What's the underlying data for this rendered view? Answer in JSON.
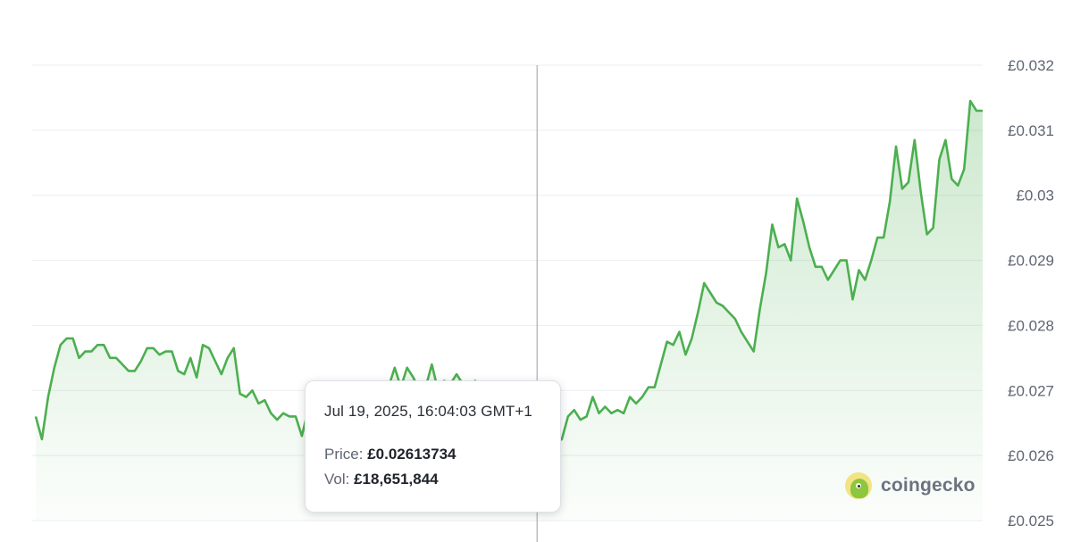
{
  "chart_data": {
    "type": "area",
    "title": "",
    "xlabel": "",
    "ylabel": "",
    "ylim": [
      0.025,
      0.032
    ],
    "y_ticks": [
      "£0.025",
      "£0.026",
      "£0.027",
      "£0.028",
      "£0.029",
      "£0.03",
      "£0.031",
      "£0.032"
    ],
    "y_tick_values": [
      0.025,
      0.026,
      0.027,
      0.028,
      0.029,
      0.03,
      0.031,
      0.032
    ],
    "grid": true,
    "y_axis_side": "right",
    "line_color": "#4caf50",
    "fill_color": "#4caf50",
    "series": [
      {
        "values": [
          0.0266,
          0.02625,
          0.0269,
          0.02735,
          0.0277,
          0.0278,
          0.0278,
          0.0275,
          0.0276,
          0.0276,
          0.0277,
          0.0277,
          0.0275,
          0.0275,
          0.0274,
          0.0273,
          0.0273,
          0.02745,
          0.02765,
          0.02765,
          0.02755,
          0.0276,
          0.0276,
          0.0273,
          0.02725,
          0.0275,
          0.0272,
          0.0277,
          0.02765,
          0.02745,
          0.02725,
          0.0275,
          0.02765,
          0.02695,
          0.0269,
          0.027,
          0.0268,
          0.02685,
          0.02665,
          0.02655,
          0.02665,
          0.0266,
          0.0266,
          0.0263,
          0.0267,
          0.0265,
          0.02675,
          0.02665,
          0.0265,
          0.0266,
          0.02665,
          0.0267,
          0.0269,
          0.02675,
          0.027,
          0.0269,
          0.027,
          0.02705,
          0.02735,
          0.02705,
          0.02735,
          0.0272,
          0.027,
          0.02705,
          0.0274,
          0.027,
          0.02715,
          0.0271,
          0.02725,
          0.0271,
          0.027,
          0.02715,
          0.02705,
          0.027,
          0.0269,
          0.0267,
          0.0266,
          0.02665,
          0.0265,
          0.0266,
          0.02635,
          0.02614,
          0.02625,
          0.02625,
          0.0262,
          0.02625,
          0.0266,
          0.0267,
          0.02655,
          0.0266,
          0.0269,
          0.02665,
          0.02675,
          0.02665,
          0.0267,
          0.02665,
          0.0269,
          0.0268,
          0.0269,
          0.02705,
          0.02705,
          0.0274,
          0.02775,
          0.0277,
          0.0279,
          0.02755,
          0.0278,
          0.0282,
          0.02865,
          0.0285,
          0.02835,
          0.0283,
          0.0282,
          0.0281,
          0.0279,
          0.02775,
          0.0276,
          0.02825,
          0.0288,
          0.02955,
          0.0292,
          0.02925,
          0.029,
          0.02995,
          0.0296,
          0.0292,
          0.0289,
          0.0289,
          0.0287,
          0.02885,
          0.029,
          0.029,
          0.0284,
          0.02885,
          0.0287,
          0.029,
          0.02935,
          0.02935,
          0.0299,
          0.03075,
          0.0301,
          0.0302,
          0.03085,
          0.03005,
          0.0294,
          0.0295,
          0.03055,
          0.03085,
          0.03025,
          0.03015,
          0.0304,
          0.03145,
          0.0313,
          0.0313
        ]
      }
    ],
    "tooltip": {
      "date": "Jul 19, 2025, 16:04:03 GMT+1",
      "price_label": "Price:",
      "price_value": "£0.02613734",
      "vol_label": "Vol:",
      "vol_value": "£18,651,844",
      "hover_index": 81
    }
  },
  "watermark": {
    "brand": "coingecko",
    "logo_icon": "gecko-logo-icon"
  }
}
